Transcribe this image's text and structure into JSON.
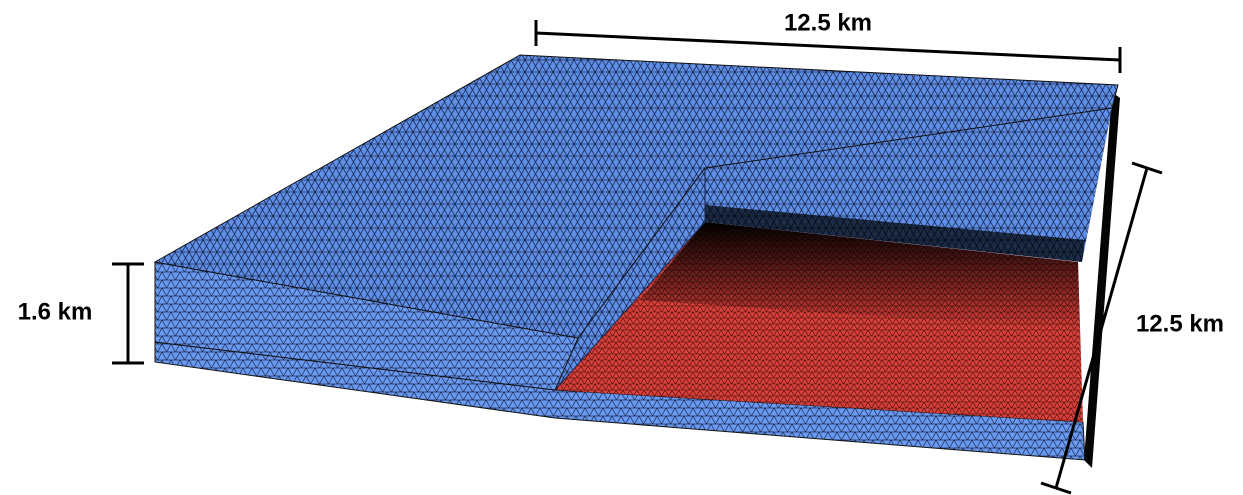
{
  "dimensions": {
    "width": "12.5 km",
    "height": "1.6 km",
    "depth": "12.5 km"
  }
}
